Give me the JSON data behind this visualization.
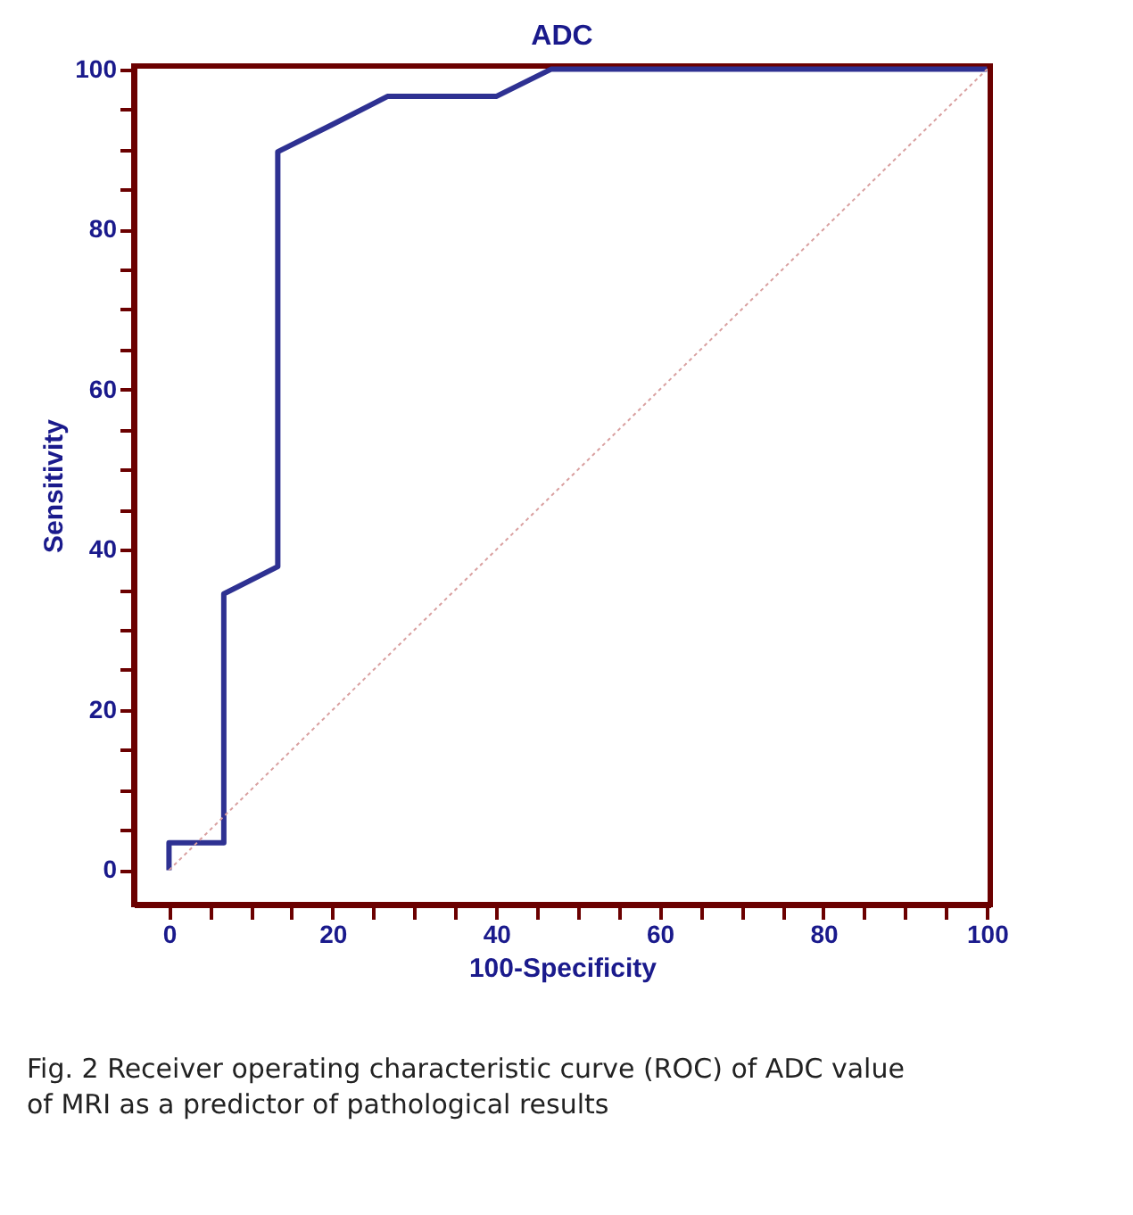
{
  "chart_data": {
    "type": "line",
    "title": "ADC",
    "xlabel": "100-Specificity",
    "ylabel": "Sensitivity",
    "series": [
      {
        "x": [
          0,
          0,
          6.7,
          6.7,
          13.3,
          13.3,
          20,
          26.7,
          40,
          46.7,
          100
        ],
        "values": [
          0,
          3.4,
          3.4,
          34.5,
          37.9,
          89.7,
          93.1,
          96.6,
          96.6,
          100,
          100
        ],
        "color": "#2e3192"
      },
      {
        "x": [
          0,
          100
        ],
        "values": [
          0,
          100
        ],
        "color": "#d9a0a0",
        "line_style": "dotted"
      }
    ],
    "xlim": [
      -4.3,
      100.4
    ],
    "ylim": [
      -4.3,
      100.4
    ],
    "xticks": [
      0,
      {
        "value": 5,
        "label": null
      },
      {
        "value": 10,
        "label": null
      },
      {
        "value": 15,
        "label": null
      },
      20,
      {
        "value": 25,
        "label": null
      },
      {
        "value": 30,
        "label": null
      },
      {
        "value": 35,
        "label": null
      },
      40,
      {
        "value": 45,
        "label": null
      },
      {
        "value": 50,
        "label": null
      },
      {
        "value": 55,
        "label": null
      },
      60,
      {
        "value": 65,
        "label": null
      },
      {
        "value": 70,
        "label": null
      },
      {
        "value": 75,
        "label": null
      },
      80,
      {
        "value": 85,
        "label": null
      },
      {
        "value": 90,
        "label": null
      },
      {
        "value": 95,
        "label": null
      },
      100
    ],
    "yticks": [
      0,
      {
        "value": 5,
        "label": null
      },
      {
        "value": 10,
        "label": null
      },
      {
        "value": 15,
        "label": null
      },
      20,
      {
        "value": 25,
        "label": null
      },
      {
        "value": 30,
        "label": null
      },
      {
        "value": 35,
        "label": null
      },
      40,
      {
        "value": 45,
        "label": null
      },
      {
        "value": 50,
        "label": null
      },
      {
        "value": 55,
        "label": null
      },
      60,
      {
        "value": 65,
        "label": null
      },
      {
        "value": 70,
        "label": null
      },
      {
        "value": 75,
        "label": null
      },
      80,
      {
        "value": 85,
        "label": null
      },
      {
        "value": 90,
        "label": null
      },
      {
        "value": 95,
        "label": null
      },
      100
    ],
    "grid": false,
    "marker": "none",
    "line_style": "solid",
    "annotations": [
      "Fig. 2  Receiver operating characteristic curve (ROC) of ADC value of MRI as a predictor of pathological results"
    ]
  }
}
